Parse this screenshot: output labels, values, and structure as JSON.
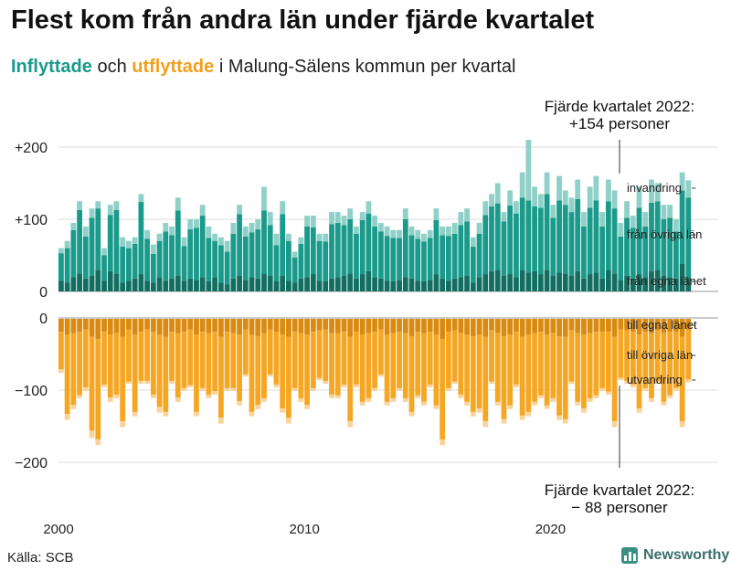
{
  "header": {
    "title": "Flest kom från andra län under fjärde kvartalet",
    "subtitle_in": "Inflyttade",
    "subtitle_mid": " och ",
    "subtitle_out": "utflyttade",
    "subtitle_rest": " i Malung-Sälens kommun per kvartal"
  },
  "footer": {
    "source": "Källa: SCB",
    "brand": "Newsworthy"
  },
  "colors": {
    "inflow_own": "#136e62",
    "inflow_other": "#1a9a8a",
    "inflow_immig": "#8fd0c8",
    "outflow_own": "#d98a10",
    "outflow_other": "#f5a623",
    "outflow_emig": "#f9d39a",
    "grid": "#dddddd"
  },
  "chart_data": {
    "type": "bar",
    "ylim_top": [
      0,
      210
    ],
    "ylim_bottom": [
      -210,
      0
    ],
    "yticks_top": [
      {
        "value": 0,
        "label": "0"
      },
      {
        "value": 100,
        "label": "+100"
      },
      {
        "value": 200,
        "label": "+200"
      }
    ],
    "yticks_bottom": [
      {
        "value": 0,
        "label": "0"
      },
      {
        "value": -100,
        "label": "−100"
      },
      {
        "value": -200,
        "label": "−200"
      }
    ],
    "xticks": [
      {
        "year": 2000,
        "label": "2000"
      },
      {
        "year": 2010,
        "label": "2010"
      },
      {
        "year": 2020,
        "label": "2020"
      }
    ],
    "start": "2000 Q1",
    "labels_in": [
      "invandring",
      "från övriga län",
      "från egna länet"
    ],
    "labels_out": [
      "till egna länet",
      "till övriga län",
      "utvandring"
    ],
    "annotation_top": [
      "Fjärde kvartalet 2022:",
      "+154 personer"
    ],
    "annotation_bottom": [
      "Fjärde kvartalet 2022:",
      "− 88 personer"
    ],
    "inflow_total": [
      60,
      70,
      95,
      125,
      90,
      115,
      125,
      60,
      120,
      125,
      75,
      70,
      75,
      135,
      85,
      65,
      80,
      95,
      90,
      130,
      75,
      100,
      100,
      120,
      90,
      80,
      75,
      70,
      95,
      120,
      90,
      95,
      100,
      145,
      110,
      80,
      125,
      80,
      55,
      75,
      105,
      105,
      80,
      80,
      110,
      110,
      105,
      115,
      90,
      110,
      125,
      105,
      95,
      90,
      85,
      85,
      115,
      90,
      85,
      80,
      85,
      115,
      90,
      90,
      95,
      110,
      115,
      75,
      95,
      125,
      135,
      150,
      110,
      140,
      125,
      165,
      210,
      145,
      135,
      165,
      120,
      160,
      140,
      130,
      155,
      110,
      145,
      160,
      110,
      155,
      140,
      95,
      125,
      105,
      145,
      110,
      155,
      150,
      120,
      120,
      100,
      165,
      154
    ],
    "inflow_own": [
      15,
      12,
      20,
      25,
      18,
      22,
      30,
      15,
      28,
      25,
      12,
      15,
      18,
      24,
      15,
      12,
      20,
      15,
      18,
      22,
      15,
      18,
      16,
      20,
      14,
      20,
      12,
      10,
      18,
      22,
      16,
      20,
      18,
      24,
      22,
      14,
      22,
      15,
      12,
      18,
      20,
      24,
      15,
      14,
      18,
      20,
      22,
      25,
      18,
      24,
      28,
      20,
      18,
      15,
      14,
      16,
      20,
      18,
      15,
      14,
      16,
      24,
      18,
      15,
      18,
      20,
      22,
      12,
      20,
      24,
      28,
      30,
      22,
      24,
      20,
      30,
      26,
      28,
      24,
      30,
      22,
      26,
      25,
      22,
      28,
      18,
      24,
      26,
      18,
      30,
      25,
      16,
      22,
      18,
      24,
      20,
      28,
      30,
      22,
      20,
      18,
      38,
      20
    ],
    "inflow_other": [
      38,
      48,
      65,
      88,
      58,
      80,
      85,
      35,
      78,
      88,
      50,
      45,
      48,
      100,
      58,
      40,
      50,
      68,
      60,
      90,
      48,
      68,
      72,
      85,
      60,
      50,
      52,
      45,
      62,
      85,
      60,
      62,
      68,
      88,
      70,
      50,
      85,
      55,
      35,
      48,
      70,
      65,
      55,
      55,
      75,
      75,
      70,
      75,
      62,
      75,
      80,
      70,
      65,
      62,
      60,
      58,
      80,
      60,
      58,
      55,
      58,
      75,
      60,
      62,
      62,
      72,
      75,
      50,
      60,
      82,
      90,
      92,
      75,
      95,
      88,
      100,
      100,
      90,
      92,
      105,
      80,
      100,
      95,
      88,
      100,
      72,
      92,
      100,
      72,
      95,
      90,
      60,
      80,
      70,
      92,
      70,
      95,
      95,
      78,
      82,
      65,
      102,
      110
    ],
    "outflow_total": [
      75,
      140,
      125,
      110,
      100,
      165,
      175,
      95,
      115,
      110,
      150,
      90,
      135,
      90,
      90,
      110,
      130,
      135,
      90,
      115,
      100,
      95,
      135,
      100,
      110,
      105,
      145,
      100,
      100,
      120,
      80,
      135,
      125,
      115,
      80,
      95,
      130,
      145,
      100,
      115,
      125,
      100,
      85,
      90,
      110,
      110,
      95,
      150,
      95,
      120,
      115,
      100,
      80,
      120,
      115,
      100,
      115,
      135,
      110,
      120,
      95,
      125,
      175,
      100,
      90,
      110,
      120,
      135,
      130,
      150,
      90,
      120,
      145,
      125,
      95,
      140,
      135,
      120,
      110,
      125,
      115,
      140,
      145,
      90,
      120,
      130,
      115,
      110,
      100,
      105,
      150,
      85,
      90,
      95,
      130,
      100,
      115,
      90,
      120,
      110,
      100,
      150,
      88
    ],
    "outflow_own": [
      18,
      22,
      20,
      18,
      15,
      25,
      28,
      18,
      22,
      20,
      25,
      15,
      22,
      18,
      15,
      18,
      22,
      25,
      18,
      20,
      18,
      15,
      22,
      18,
      20,
      18,
      25,
      18,
      20,
      22,
      15,
      22,
      24,
      20,
      15,
      18,
      22,
      25,
      18,
      20,
      22,
      18,
      16,
      15,
      20,
      20,
      18,
      25,
      18,
      22,
      20,
      18,
      15,
      22,
      20,
      18,
      20,
      24,
      18,
      20,
      18,
      22,
      28,
      18,
      16,
      20,
      22,
      24,
      22,
      25,
      16,
      20,
      24,
      22,
      18,
      25,
      22,
      20,
      18,
      22,
      20,
      24,
      25,
      16,
      20,
      22,
      20,
      18,
      18,
      18,
      25,
      15,
      16,
      18,
      22,
      18,
      20,
      16,
      20,
      18,
      18,
      25,
      15
    ],
    "outflow_emig": [
      5,
      8,
      6,
      4,
      5,
      10,
      8,
      4,
      6,
      5,
      8,
      3,
      6,
      4,
      4,
      5,
      8,
      6,
      4,
      6,
      4,
      3,
      6,
      4,
      5,
      5,
      8,
      4,
      4,
      6,
      3,
      6,
      6,
      5,
      3,
      4,
      6,
      8,
      4,
      5,
      6,
      4,
      3,
      4,
      5,
      4,
      4,
      8,
      4,
      5,
      5,
      4,
      3,
      5,
      5,
      4,
      5,
      6,
      4,
      5,
      4,
      5,
      8,
      4,
      3,
      5,
      5,
      6,
      6,
      8,
      3,
      5,
      6,
      5,
      4,
      6,
      6,
      5,
      4,
      5,
      5,
      6,
      6,
      3,
      5,
      6,
      5,
      4,
      4,
      4,
      8,
      3,
      4,
      4,
      6,
      4,
      5,
      4,
      5,
      4,
      4,
      8,
      4
    ]
  }
}
